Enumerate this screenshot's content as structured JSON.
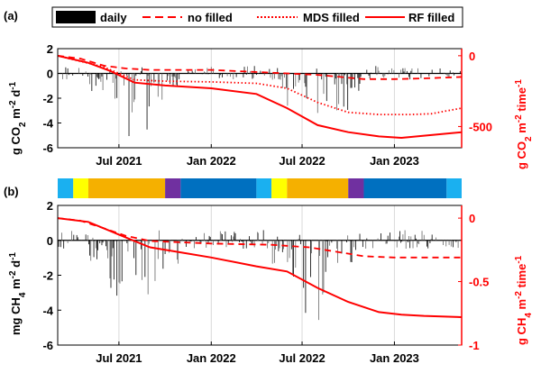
{
  "chart_data": [
    {
      "type": "line",
      "panel_label": "(a)",
      "x_ticks": [
        "Jul 2021",
        "Jan 2022",
        "Jul 2022",
        "Jan 2023"
      ],
      "x_range": [
        "2021-03-01",
        "2023-05-15"
      ],
      "left_axis": {
        "label_main": "g CO",
        "label_sub": "2",
        "label_rest": " m",
        "label_sup": "-2",
        "label_tail": " d",
        "label_sup2": "-1",
        "ylim": [
          -6,
          2
        ],
        "ticks": [
          "2",
          "0",
          "-2",
          "-4",
          "-6"
        ]
      },
      "right_axis": {
        "label_main": "g CO",
        "label_sub": "2",
        "label_rest": " m",
        "label_sup": "-2",
        "label_tail": " time",
        "label_sup2": "-1",
        "ylim": [
          -650,
          50
        ],
        "ticks": [
          "0",
          "-500"
        ]
      },
      "legend": [
        {
          "name": "daily",
          "style": "bar",
          "color": "#000000"
        },
        {
          "name": "no filled",
          "style": "dashed",
          "color": "#ff0000"
        },
        {
          "name": "MDS filled",
          "style": "dotted",
          "color": "#ff0000"
        },
        {
          "name": "RF filled",
          "style": "solid",
          "color": "#ff0000"
        }
      ],
      "series": [
        {
          "name": "no filled",
          "dates": [
            "2021-03-01",
            "2021-04-15",
            "2021-06-01",
            "2021-07-15",
            "2021-09-01",
            "2022-01-01",
            "2022-05-01",
            "2022-08-01",
            "2022-09-15",
            "2022-11-01",
            "2023-01-01",
            "2023-03-01",
            "2023-05-15"
          ],
          "values": [
            0,
            -20,
            -70,
            -90,
            -100,
            -100,
            -120,
            -135,
            -150,
            -165,
            -165,
            -160,
            -150
          ]
        },
        {
          "name": "MDS filled",
          "dates": [
            "2021-03-01",
            "2021-06-01",
            "2021-08-01",
            "2021-10-01",
            "2022-01-01",
            "2022-04-01",
            "2022-06-01",
            "2022-08-01",
            "2022-10-01",
            "2022-12-01",
            "2023-02-01",
            "2023-03-15",
            "2023-05-15"
          ],
          "values": [
            0,
            -80,
            -170,
            -180,
            -185,
            -195,
            -230,
            -330,
            -400,
            -415,
            -415,
            -410,
            -370
          ]
        },
        {
          "name": "RF filled",
          "dates": [
            "2021-03-01",
            "2021-05-01",
            "2021-06-15",
            "2021-08-01",
            "2021-10-01",
            "2022-01-01",
            "2022-04-01",
            "2022-06-01",
            "2022-08-01",
            "2022-10-01",
            "2022-12-01",
            "2023-01-15",
            "2023-03-01",
            "2023-05-15"
          ],
          "values": [
            0,
            -50,
            -110,
            -190,
            -210,
            -230,
            -270,
            -370,
            -490,
            -540,
            -570,
            -580,
            -565,
            -540
          ]
        }
      ]
    },
    {
      "type": "line",
      "panel_label": "(b)",
      "x_ticks": [
        "Jul 2021",
        "Jan 2022",
        "Jul 2022",
        "Jan 2023"
      ],
      "x_range": [
        "2021-03-01",
        "2023-05-15"
      ],
      "left_axis": {
        "label_main": "mg CH",
        "label_sub": "4",
        "label_rest": " m",
        "label_sup": "-2",
        "label_tail": " d",
        "label_sup2": "-1",
        "ylim": [
          -6,
          2
        ],
        "ticks": [
          "2",
          "0",
          "-2",
          "-4",
          "-6"
        ]
      },
      "right_axis": {
        "label_main": "g CH",
        "label_sub": "4",
        "label_rest": " m",
        "label_sup": "-2",
        "label_tail": " time",
        "label_sup2": "-1",
        "ylim": [
          -1,
          0.1
        ],
        "ticks": [
          "0",
          "-0.5",
          "-1"
        ]
      },
      "season_bar": [
        {
          "start": "2021-03-01",
          "end": "2021-04-01",
          "color": "#1ab0f0"
        },
        {
          "start": "2021-04-01",
          "end": "2021-05-01",
          "color": "#ffff00"
        },
        {
          "start": "2021-05-01",
          "end": "2021-10-01",
          "color": "#f5b000"
        },
        {
          "start": "2021-10-01",
          "end": "2021-11-01",
          "color": "#7030a0"
        },
        {
          "start": "2021-11-01",
          "end": "2022-04-01",
          "color": "#0070c0"
        },
        {
          "start": "2022-04-01",
          "end": "2022-05-01",
          "color": "#1ab0f0"
        },
        {
          "start": "2022-05-01",
          "end": "2022-06-01",
          "color": "#ffff00"
        },
        {
          "start": "2022-06-01",
          "end": "2022-10-01",
          "color": "#f5b000"
        },
        {
          "start": "2022-10-01",
          "end": "2022-11-01",
          "color": "#7030a0"
        },
        {
          "start": "2022-11-01",
          "end": "2023-04-15",
          "color": "#0070c0"
        },
        {
          "start": "2023-04-15",
          "end": "2023-05-15",
          "color": "#1ab0f0"
        }
      ],
      "series": [
        {
          "name": "no filled",
          "dates": [
            "2021-03-01",
            "2021-04-15",
            "2021-06-01",
            "2021-07-15",
            "2021-09-01",
            "2022-01-01",
            "2022-05-01",
            "2022-07-15",
            "2022-09-15",
            "2022-11-01",
            "2023-01-01",
            "2023-05-15"
          ],
          "values": [
            0,
            -0.02,
            -0.08,
            -0.14,
            -0.18,
            -0.2,
            -0.21,
            -0.23,
            -0.27,
            -0.3,
            -0.31,
            -0.31
          ]
        },
        {
          "name": "RF filled",
          "dates": [
            "2021-03-01",
            "2021-05-01",
            "2021-07-01",
            "2021-09-01",
            "2021-11-01",
            "2022-01-01",
            "2022-04-01",
            "2022-06-01",
            "2022-08-01",
            "2022-10-01",
            "2022-12-01",
            "2023-01-15",
            "2023-03-01",
            "2023-05-15"
          ],
          "values": [
            0,
            -0.03,
            -0.13,
            -0.23,
            -0.27,
            -0.31,
            -0.38,
            -0.42,
            -0.55,
            -0.66,
            -0.74,
            -0.76,
            -0.77,
            -0.78
          ]
        }
      ]
    }
  ]
}
